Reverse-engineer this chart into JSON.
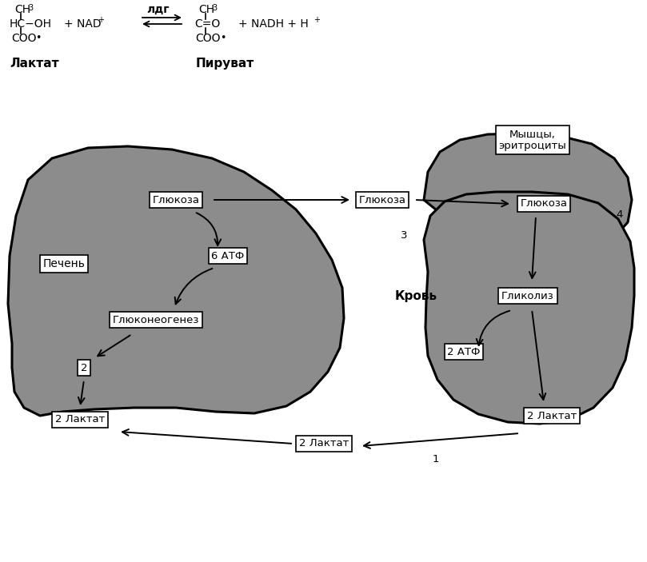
{
  "bg_color": "#ffffff",
  "fig_width": 8.09,
  "fig_height": 7.03,
  "dpi": 100,
  "organ_color": "#8c8c8c",
  "box_fc": "#ffffff",
  "box_ec": "#000000",
  "labels": {
    "pecheny": "Печень",
    "glyukoza_liver": "Глюкоза",
    "atf6": "6 АТФ",
    "glyukoneogenez": "Глюконеогенез",
    "num2": "2",
    "laktat2_liver": "2 Лактат",
    "krov": "Кровь",
    "glyukoza_blood": "Глюкоза",
    "laktat2_blood": "2 Лактат",
    "num1": "1",
    "num3": "3",
    "num4": "4",
    "myshcy": "Мышцы,\nэритроциты",
    "glyukoza_muscle": "Глюкоза",
    "glikoliz": "Гликолиз",
    "atf2": "2 АТФ",
    "laktat2_muscle": "2 Лактат",
    "laktat": "Лактат",
    "piruvat": "Пируват"
  }
}
